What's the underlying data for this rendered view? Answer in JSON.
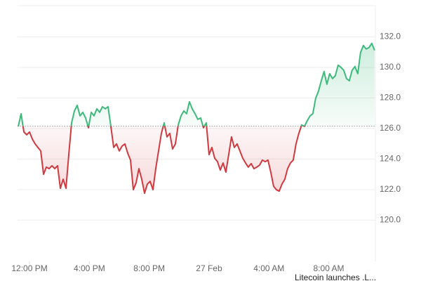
{
  "chart_data": {
    "type": "line",
    "x": [
      -45,
      -33.75,
      -22.5,
      -11.25,
      0,
      11.25,
      22.5,
      33.75,
      45,
      56.25,
      67.5,
      78.75,
      90,
      101.25,
      112.5,
      123.75,
      135,
      146.25,
      157.5,
      168.75,
      180,
      191.25,
      202.5,
      213.75,
      225,
      236.25,
      247.5,
      258.75,
      270,
      281.25,
      292.5,
      303.75,
      315,
      326.25,
      337.5,
      348.75,
      360,
      371.25,
      382.5,
      393.75,
      405,
      416.25,
      427.5,
      438.75,
      450,
      461.25,
      472.5,
      483.75,
      495,
      506.25,
      517.5,
      528.75,
      540,
      551.25,
      562.5,
      573.75,
      585,
      596.25,
      607.5,
      618.75,
      630,
      641.25,
      652.5,
      663.75,
      675,
      686.25,
      697.5,
      708.75,
      720,
      731.25,
      742.5,
      753.75,
      765,
      776.25,
      787.5,
      798.75,
      810,
      821.25,
      832.5,
      843.75,
      855,
      866.25,
      877.5,
      888.75,
      900,
      911.25,
      922.5,
      933.75,
      945,
      956.25,
      967.5,
      978.75,
      990,
      1001.25,
      1012.5,
      1023.75,
      1035,
      1046.25,
      1057.5,
      1068.75,
      1080,
      1091.25,
      1102.5,
      1113.75,
      1125,
      1136.25,
      1147.5,
      1158.75,
      1170,
      1181.25,
      1192.5,
      1203.75,
      1215,
      1226.25,
      1237.5,
      1248.75,
      1260,
      1271.25,
      1282.5,
      1293.75,
      1305,
      1316.25,
      1327.5,
      1338.75,
      1350,
      1361.25,
      1372.5,
      1383.75
    ],
    "series": [
      {
        "up_color": "#3dba7b",
        "down_color": "#d0393f",
        "values": [
          126.14,
          126.97,
          125.77,
          125.59,
          125.77,
          125.31,
          124.99,
          124.76,
          124.53,
          123.0,
          123.47,
          123.37,
          123.56,
          123.37,
          123.56,
          122.08,
          122.68,
          122.08,
          124.29,
          126.37,
          127.15,
          127.52,
          126.83,
          127.06,
          126.69,
          126.05,
          127.06,
          126.83,
          127.29,
          127.06,
          127.43,
          127.29,
          127.43,
          126.14,
          124.76,
          124.99,
          124.53,
          124.85,
          124.99,
          124.39,
          123.93,
          121.99,
          122.45,
          123.37,
          122.68,
          121.76,
          122.36,
          122.54,
          121.99,
          123.37,
          124.53,
          125.68,
          126.37,
          125.45,
          125.68,
          124.66,
          124.99,
          126.23,
          126.83,
          127.15,
          126.97,
          127.75,
          127.29,
          126.97,
          126.6,
          126.69,
          126.05,
          126.37,
          124.29,
          124.76,
          124.06,
          123.83,
          123.28,
          123.74,
          123.14,
          124.29,
          125.45,
          124.76,
          124.99,
          124.53,
          124.06,
          123.74,
          123.47,
          123.7,
          123.37,
          123.47,
          123.6,
          123.93,
          123.83,
          123.93,
          123.14,
          122.22,
          121.99,
          121.9,
          122.36,
          122.68,
          123.37,
          123.74,
          123.93,
          124.99,
          125.68,
          126.23,
          126.14,
          126.51,
          126.83,
          126.97,
          127.98,
          128.44,
          129.13,
          129.73,
          128.9,
          129.59,
          129.27,
          129.46,
          130.15,
          130.01,
          129.82,
          129.27,
          129.13,
          129.82,
          130.06,
          129.59,
          130.98,
          131.44,
          131.21,
          131.3,
          131.58,
          131.12
        ]
      }
    ],
    "baseline": 126.15,
    "xlim": [
      -48,
      1387
    ],
    "ylim": [
      117.3,
      134.05
    ],
    "xticks": [
      {
        "value": 0,
        "label": "12:00 PM"
      },
      {
        "value": 240,
        "label": "4:00 PM"
      },
      {
        "value": 480,
        "label": "8:00 PM"
      },
      {
        "value": 720,
        "label": "27 Feb"
      },
      {
        "value": 960,
        "label": "4:00 AM"
      },
      {
        "value": 1200,
        "label": "8:00 AM"
      }
    ],
    "yticks": [
      {
        "value": 120,
        "label": "120.0"
      },
      {
        "value": 122,
        "label": "122.0"
      },
      {
        "value": 124,
        "label": "124.0"
      },
      {
        "value": 126,
        "label": "126.0"
      },
      {
        "value": 128,
        "label": "128.0"
      },
      {
        "value": 130,
        "label": "130.0"
      },
      {
        "value": 132,
        "label": "132.0"
      }
    ],
    "grid": true,
    "annotation": "Litecoin launches .L..."
  }
}
